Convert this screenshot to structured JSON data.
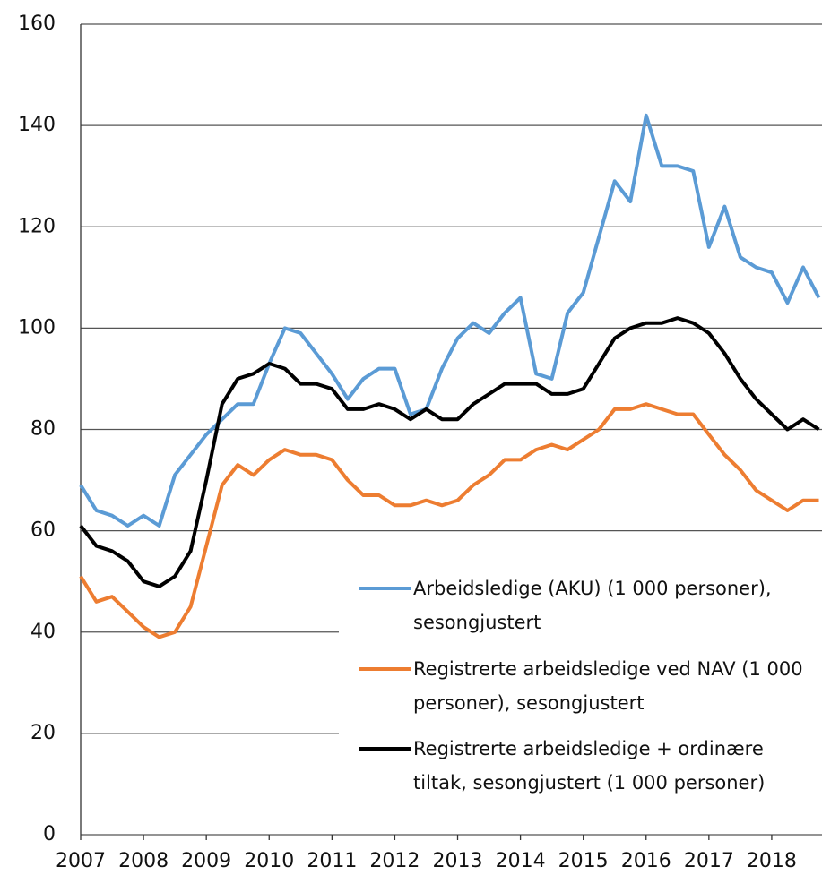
{
  "chart_data": {
    "type": "line",
    "x": [
      2007,
      2007.25,
      2007.5,
      2007.75,
      2008,
      2008.25,
      2008.5,
      2008.75,
      2009,
      2009.25,
      2009.5,
      2009.75,
      2010,
      2010.25,
      2010.5,
      2010.75,
      2011,
      2011.25,
      2011.5,
      2011.75,
      2012,
      2012.25,
      2012.5,
      2012.75,
      2013,
      2013.25,
      2013.5,
      2013.75,
      2014,
      2014.25,
      2014.5,
      2014.75,
      2015,
      2015.25,
      2015.5,
      2015.75,
      2016,
      2016.25,
      2016.5,
      2016.75,
      2017,
      2017.25,
      2017.5,
      2017.75,
      2018,
      2018.25,
      2018.5,
      2018.75
    ],
    "series": [
      {
        "name": "Arbeidsledige (AKU) (1 000 personer), sesongjustert",
        "color": "#5b9bd5",
        "values": [
          69,
          64,
          63,
          61,
          63,
          61,
          71,
          75,
          79,
          82,
          85,
          85,
          93,
          100,
          99,
          95,
          91,
          86,
          90,
          92,
          92,
          83,
          84,
          92,
          98,
          101,
          99,
          103,
          106,
          91,
          90,
          103,
          107,
          118,
          129,
          125,
          142,
          132,
          132,
          131,
          116,
          124,
          114,
          112,
          111,
          105,
          112,
          106
        ]
      },
      {
        "name": "Registrerte arbeidsledige ved NAV (1 000 personer), sesongjustert",
        "color": "#ed7d31",
        "values": [
          51,
          46,
          47,
          44,
          41,
          39,
          40,
          45,
          57,
          69,
          73,
          71,
          74,
          76,
          75,
          75,
          74,
          70,
          67,
          67,
          65,
          65,
          66,
          65,
          66,
          69,
          71,
          74,
          74,
          76,
          77,
          76,
          78,
          80,
          84,
          84,
          85,
          84,
          83,
          83,
          79,
          75,
          72,
          68,
          66,
          64,
          66,
          66
        ]
      },
      {
        "name": "Registrerte arbeidsledige + ordinære tiltak, sesongjustert (1 000 personer)",
        "color": "#000000",
        "values": [
          61,
          57,
          56,
          54,
          50,
          49,
          51,
          56,
          70,
          85,
          90,
          91,
          93,
          92,
          89,
          89,
          88,
          84,
          84,
          85,
          84,
          82,
          84,
          82,
          82,
          85,
          87,
          89,
          89,
          89,
          87,
          87,
          88,
          93,
          98,
          100,
          101,
          101,
          102,
          101,
          99,
          95,
          90,
          86,
          83,
          80,
          82,
          80
        ]
      }
    ],
    "xlim": [
      2007,
      2018.8
    ],
    "xticks": [
      2007,
      2008,
      2009,
      2010,
      2011,
      2012,
      2013,
      2014,
      2015,
      2016,
      2017,
      2018
    ],
    "ylim": [
      0,
      160
    ],
    "yticks": [
      0,
      20,
      40,
      60,
      80,
      100,
      120,
      140,
      160
    ],
    "grid": true
  }
}
